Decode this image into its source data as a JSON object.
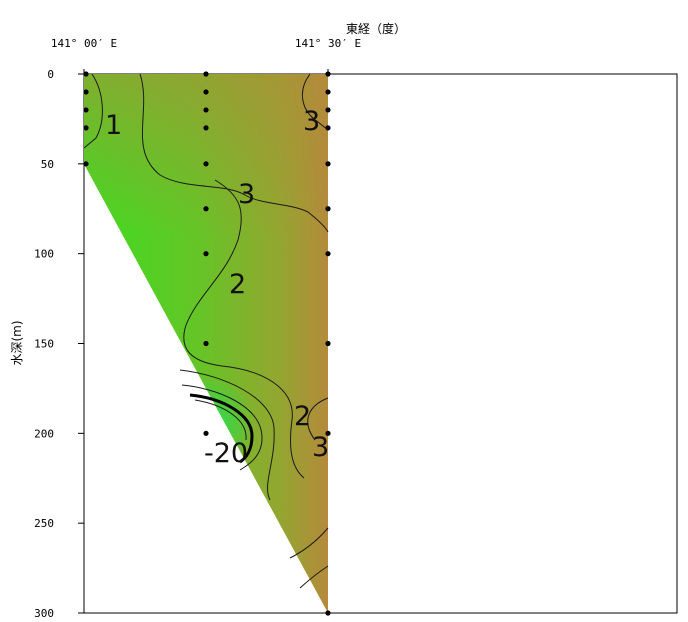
{
  "chart_data": {
    "type": "contour",
    "xlabel": "東経（度）",
    "ylabel": "水深(m)",
    "x_ticks": [
      "141° 00′ E",
      "141° 30′ E"
    ],
    "x_range": [
      "141° 00′ E",
      "141° 30′ E"
    ],
    "y_ticks": [
      0,
      50,
      100,
      150,
      200,
      250,
      300
    ],
    "ylim": [
      0,
      300
    ],
    "y_inverted": true,
    "contour_labels": [
      "1",
      "3",
      "3",
      "2",
      "2",
      "3",
      "-20"
    ],
    "stations": [
      {
        "lon": "141° 00′ E",
        "depths": [
          0,
          10,
          20,
          30,
          50
        ]
      },
      {
        "lon": "141° 15′ E",
        "depths": [
          0,
          10,
          20,
          30,
          50,
          75,
          100,
          150,
          200
        ]
      },
      {
        "lon": "141° 30′ E",
        "depths": [
          0,
          10,
          20,
          30,
          50,
          75,
          100,
          150,
          200,
          300
        ]
      }
    ],
    "colors": {
      "low": "#3fdc21",
      "mid": "#7ab82a",
      "high": "#b38a3a"
    }
  }
}
